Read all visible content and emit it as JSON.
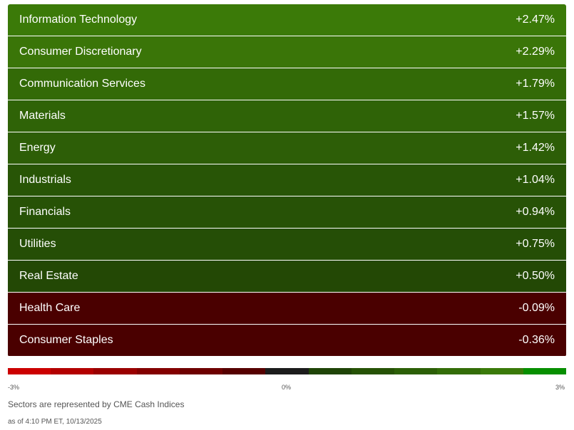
{
  "chart_data": {
    "type": "heatmap",
    "unit": "%",
    "sectors": [
      {
        "name": "Information Technology",
        "value": 2.47,
        "label": "+2.47%",
        "color": "#3b7a08"
      },
      {
        "name": "Consumer Discretionary",
        "value": 2.29,
        "label": "+2.29%",
        "color": "#3a7508"
      },
      {
        "name": "Communication Services",
        "value": 1.79,
        "label": "+1.79%",
        "color": "#336a07"
      },
      {
        "name": "Materials",
        "value": 1.57,
        "label": "+1.57%",
        "color": "#2f6307"
      },
      {
        "name": "Energy",
        "value": 1.42,
        "label": "+1.42%",
        "color": "#2d5e07"
      },
      {
        "name": "Industrials",
        "value": 1.04,
        "label": "+1.04%",
        "color": "#285506"
      },
      {
        "name": "Financials",
        "value": 0.94,
        "label": "+0.94%",
        "color": "#275206"
      },
      {
        "name": "Utilities",
        "value": 0.75,
        "label": "+0.75%",
        "color": "#254e06"
      },
      {
        "name": "Real Estate",
        "value": 0.5,
        "label": "+0.50%",
        "color": "#234805"
      },
      {
        "name": "Health Care",
        "value": -0.09,
        "label": "-0.09%",
        "color": "#4a0000"
      },
      {
        "name": "Consumer Staples",
        "value": -0.36,
        "label": "-0.36%",
        "color": "#4a0000"
      }
    ],
    "scale": {
      "min": -3,
      "max": 3,
      "min_label": "-3%",
      "mid_label": "0%",
      "max_label": "3%",
      "colors": [
        "#cc0000",
        "#b30000",
        "#9a0000",
        "#830000",
        "#6e0000",
        "#560000",
        "#1c1c1c",
        "#1f4407",
        "#265206",
        "#2c5f07",
        "#336d08",
        "#3a7a09",
        "#078f00"
      ]
    },
    "note": "Sectors are represented by CME Cash Indices",
    "as_of": "as of 4:10 PM ET, 10/13/2025"
  }
}
